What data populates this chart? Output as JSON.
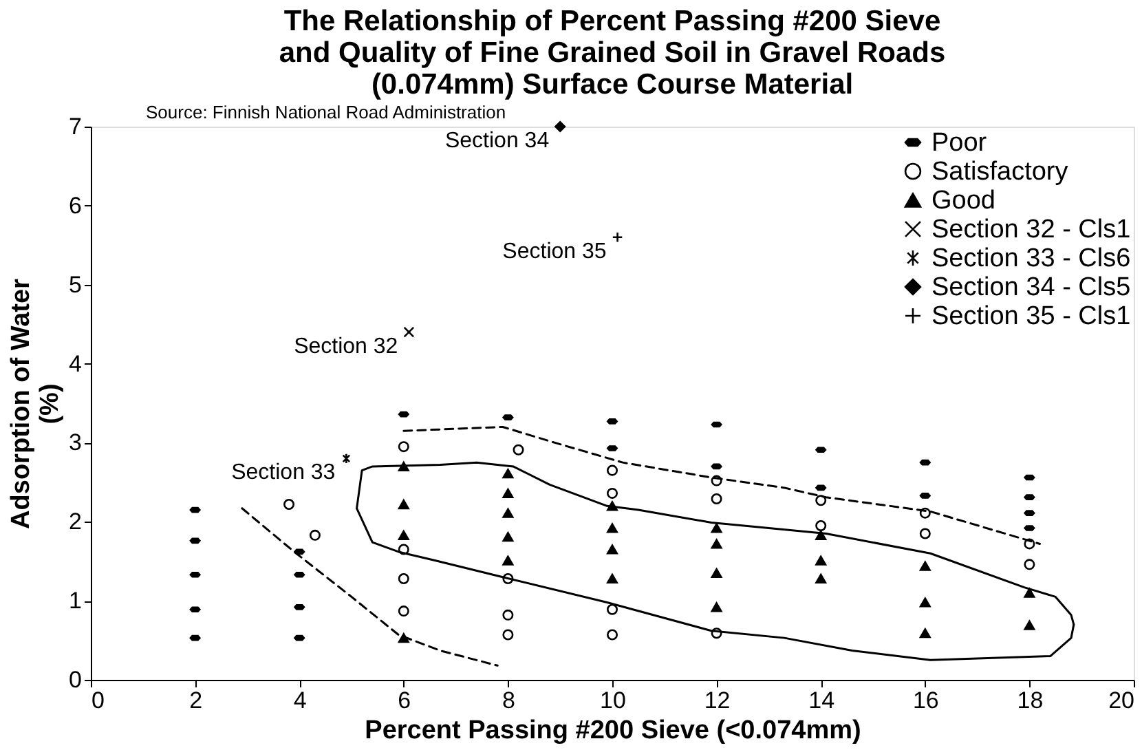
{
  "chart_data": {
    "type": "scatter",
    "title": "The Relationship of Percent Passing #200 Sieve\nand Quality of Fine Grained Soil in Gravel Roads\n(0.074mm) Surface Course Material",
    "xlabel": "Percent Passing #200 Sieve (<0.074mm)",
    "ylabel": "Adsorption of Water\n(%)",
    "xlim": [
      0,
      20
    ],
    "xticks": [
      0,
      2,
      4,
      6,
      8,
      10,
      12,
      14,
      16,
      18,
      20
    ],
    "ylim": [
      0,
      7
    ],
    "yticks": [
      0,
      1,
      2,
      3,
      4,
      5,
      6,
      7
    ],
    "grid": false,
    "legend": "top right",
    "series": [
      {
        "name": "Poor",
        "color": "#000000",
        "x": [
          2,
          2,
          2,
          2,
          2,
          4,
          4,
          4,
          4,
          6,
          8,
          10,
          10,
          12,
          12,
          14,
          14,
          16,
          16,
          18,
          18,
          18,
          18
        ],
        "values": [
          2.15,
          1.76,
          1.33,
          0.89,
          0.53,
          1.62,
          1.33,
          0.92,
          0.53,
          3.36,
          3.32,
          3.27,
          2.93,
          3.23,
          2.7,
          2.91,
          2.43,
          2.75,
          2.33,
          2.56,
          2.31,
          2.11,
          1.92
        ]
      },
      {
        "name": "Satisfactory",
        "marker": "circle",
        "color": "#000000",
        "x": [
          3.8,
          4.3,
          6,
          6,
          6,
          6,
          8.2,
          8,
          8,
          8,
          10,
          10,
          10,
          10,
          12,
          12,
          12,
          14,
          14,
          16,
          16,
          18,
          18
        ],
        "values": [
          2.22,
          1.83,
          2.95,
          1.65,
          1.28,
          0.87,
          2.91,
          1.28,
          0.82,
          0.57,
          2.65,
          2.36,
          0.89,
          0.57,
          2.52,
          2.29,
          0.59,
          2.27,
          1.95,
          2.11,
          1.85,
          1.72,
          1.46
        ]
      },
      {
        "name": "Good",
        "marker": "triangle",
        "color": "#000000",
        "x": [
          6,
          6,
          6,
          6,
          8,
          8,
          8,
          8,
          8,
          10,
          10,
          10,
          10,
          12,
          12,
          12,
          12,
          14,
          14,
          14,
          16,
          16,
          16,
          18,
          18
        ],
        "values": [
          2.7,
          2.22,
          1.83,
          0.53,
          2.61,
          2.36,
          2.11,
          1.81,
          1.51,
          2.2,
          1.92,
          1.65,
          1.28,
          1.92,
          1.72,
          1.35,
          0.92,
          1.83,
          1.51,
          1.28,
          1.44,
          0.98,
          0.59,
          1.1,
          0.69
        ]
      },
      {
        "name": "Section 32 - Cls1",
        "marker": "cross",
        "color": "#000000",
        "x": [
          6.1
        ],
        "values": [
          4.4
        ]
      },
      {
        "name": "Section 33 - Cls6",
        "color": "#000000",
        "x": [
          4.9
        ],
        "values": [
          2.8
        ]
      },
      {
        "name": "Section 34 - Cls5",
        "marker": "diamond",
        "color": "#000000",
        "x": [
          9
        ],
        "values": [
          7
        ]
      },
      {
        "name": "Section 35 - Cls1",
        "color": "#000000",
        "x": [
          10.1
        ],
        "values": [
          5.6
        ]
      },
      {
        "type": "line",
        "line_style": "dashed",
        "color": "#000000",
        "x": [
          6,
          7.9,
          8.9,
          10.2,
          11.9,
          13.3,
          14.1,
          16.1,
          18.2
        ],
        "values": [
          3.15,
          3.2,
          3.0,
          2.75,
          2.56,
          2.43,
          2.31,
          2.13,
          1.72
        ]
      },
      {
        "type": "line",
        "line_style": "dashed",
        "color": "#000000",
        "x": [
          2.9,
          3.9,
          5.0,
          5.9,
          6.7,
          7.8
        ],
        "values": [
          2.17,
          1.62,
          1.05,
          0.57,
          0.37,
          0.18
        ]
      },
      {
        "type": "line",
        "line_style": "solid",
        "color": "#000000",
        "x": [
          5.1,
          5.4,
          5.9,
          6.6,
          7.9,
          9.9,
          11.9,
          13.3,
          14.6,
          16.1,
          18.4,
          18.8,
          18.85
        ],
        "values": [
          2.17,
          1.74,
          1.62,
          1.51,
          1.3,
          0.98,
          0.62,
          0.53,
          0.37,
          0.25,
          0.3,
          0.53,
          0.7
        ]
      },
      {
        "type": "line",
        "line_style": "solid",
        "color": "#000000",
        "x": [
          5.1,
          5.2,
          5.4,
          6.7,
          7.4,
          8.1,
          8.8,
          9.9,
          10.5,
          11.9,
          14.1,
          16.1,
          17.9,
          18.5,
          18.8,
          18.85
        ],
        "values": [
          2.17,
          2.65,
          2.7,
          2.72,
          2.75,
          2.7,
          2.47,
          2.2,
          2.15,
          1.99,
          1.85,
          1.6,
          1.17,
          1.05,
          0.82,
          0.7
        ]
      }
    ],
    "annotations": [
      "Source: Finnish National Road Administration",
      {
        "text": "Section 32",
        "x": 6.1,
        "y": 4.4
      },
      {
        "text": "Section 33",
        "x": 4.9,
        "y": 2.8
      },
      {
        "text": "Section 34",
        "x": 9,
        "y": 7
      },
      {
        "text": "Section 35",
        "x": 10.1,
        "y": 5.6
      }
    ]
  }
}
